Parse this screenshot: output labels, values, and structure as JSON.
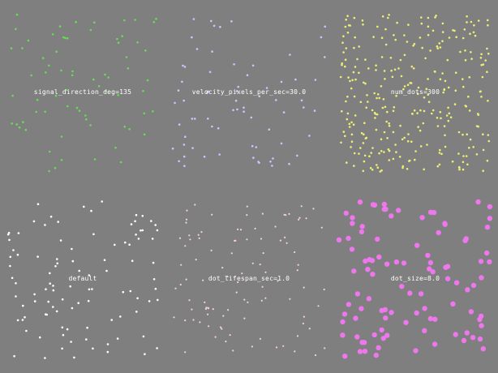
{
  "panels": [
    {
      "label": "signal_direction_deg=135",
      "dot_color": "#66dd55",
      "num_dots": 70,
      "dot_radius": 1.3,
      "seed": 11
    },
    {
      "label": "velocity_pixels_per_sec=30.0",
      "dot_color": "#c8c8ff",
      "num_dots": 70,
      "dot_radius": 1.3,
      "seed": 23
    },
    {
      "label": "num_dots=300",
      "dot_color": "#eeee77",
      "num_dots": 300,
      "dot_radius": 1.3,
      "seed": 37
    },
    {
      "label": "default",
      "dot_color": "#ffffff",
      "num_dots": 100,
      "dot_radius": 1.3,
      "seed": 41
    },
    {
      "label": "dot_lifespan_sec=1.0",
      "dot_color": "#f6d0de",
      "num_dots": 100,
      "dot_radius": 1.1,
      "seed": 53
    },
    {
      "label": "dot_size=8.0",
      "dot_color": "#ee77ee",
      "num_dots": 100,
      "dot_radius": 3.2,
      "seed": 67
    }
  ]
}
